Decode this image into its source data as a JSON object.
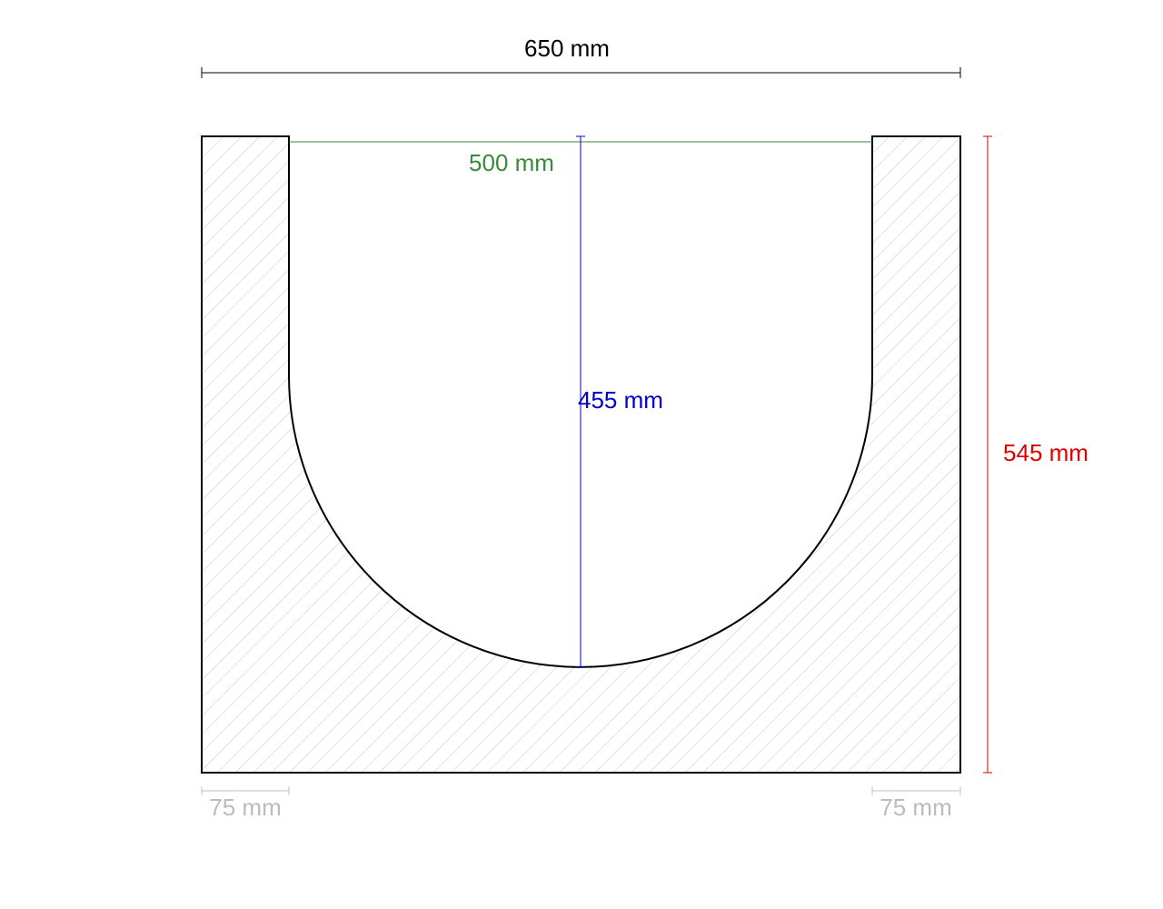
{
  "dimensions": {
    "overall_width": "650 mm",
    "inner_width": "500 mm",
    "inner_depth": "455 mm",
    "overall_height": "545 mm",
    "left_wall": "75 mm",
    "right_wall": "75 mm"
  }
}
